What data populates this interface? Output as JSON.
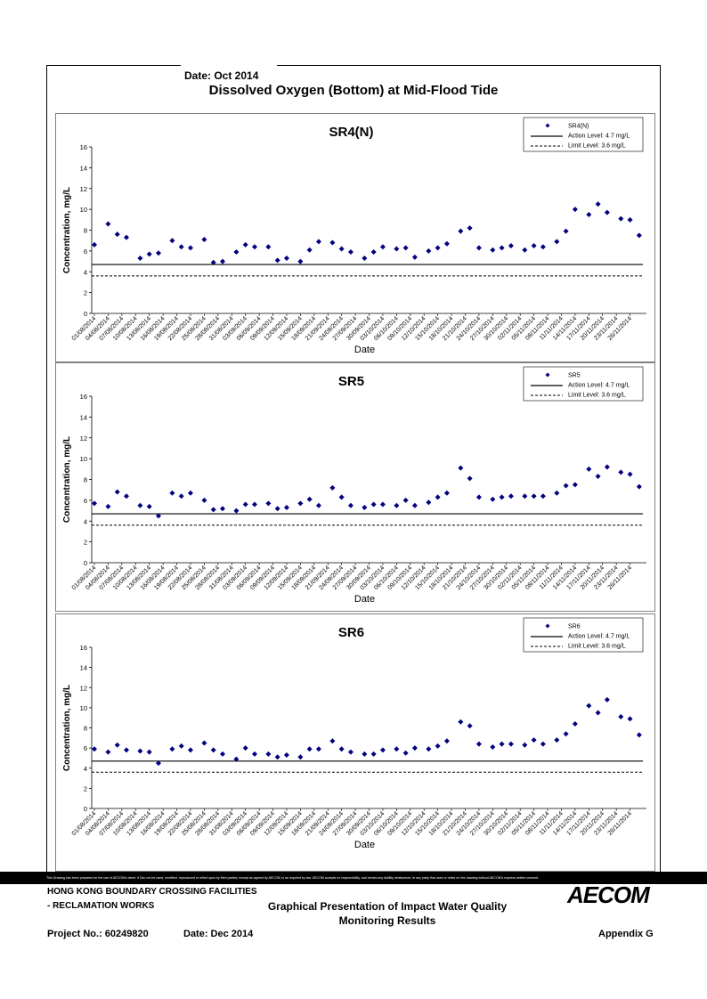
{
  "header": {
    "date": "Date: Oct 2014",
    "title": "Dissolved Oxygen (Bottom) at Mid-Flood Tide"
  },
  "chart_data": [
    {
      "type": "scatter",
      "title": "SR4(N)",
      "xlabel": "Date",
      "ylabel": "Concentration, mg/L",
      "ylim": [
        0,
        16
      ],
      "yticks": [
        0,
        2,
        4,
        6,
        8,
        10,
        12,
        14,
        16
      ],
      "x_tick_labels": [
        "01/08/2014",
        "04/08/2014",
        "07/08/2014",
        "10/08/2014",
        "13/08/2014",
        "16/08/2014",
        "19/08/2014",
        "22/08/2014",
        "25/08/2014",
        "28/08/2014",
        "31/08/2014",
        "03/09/2014",
        "06/09/2014",
        "09/09/2014",
        "12/09/2014",
        "15/09/2014",
        "18/09/2014",
        "21/09/2014",
        "24/09/2014",
        "27/09/2014",
        "30/09/2014",
        "03/10/2014",
        "06/10/2014",
        "09/10/2014",
        "12/10/2014",
        "15/10/2014",
        "18/10/2014",
        "21/10/2014",
        "24/10/2014",
        "27/10/2014",
        "30/10/2014",
        "02/11/2014",
        "05/11/2014",
        "08/11/2014",
        "11/11/2014",
        "14/11/2014",
        "17/11/2014",
        "20/11/2014",
        "23/11/2014",
        "26/11/2014"
      ],
      "legend": {
        "position": "top-right",
        "entries": [
          "SR4(N)",
          "Action Level: 4.7 mg/L",
          "Limit Level: 3.6 mg/L"
        ]
      },
      "action_level": 4.7,
      "limit_level": 3.6,
      "series": [
        {
          "name": "SR4(N)",
          "color": "#000080",
          "points": [
            [
              0,
              6.6
            ],
            [
              1.5,
              8.6
            ],
            [
              2.5,
              7.6
            ],
            [
              3.5,
              7.3
            ],
            [
              5,
              5.3
            ],
            [
              6,
              5.7
            ],
            [
              7,
              5.8
            ],
            [
              8.5,
              7.0
            ],
            [
              9.5,
              6.4
            ],
            [
              10.5,
              6.3
            ],
            [
              12,
              7.1
            ],
            [
              13,
              4.9
            ],
            [
              14,
              5.0
            ],
            [
              15.5,
              5.9
            ],
            [
              16.5,
              6.6
            ],
            [
              17.5,
              6.4
            ],
            [
              19,
              6.4
            ],
            [
              20,
              5.1
            ],
            [
              21,
              5.3
            ],
            [
              22.5,
              5.0
            ],
            [
              23.5,
              6.1
            ],
            [
              24.5,
              6.9
            ],
            [
              26,
              6.8
            ],
            [
              27,
              6.2
            ],
            [
              28,
              5.9
            ],
            [
              29.5,
              5.3
            ],
            [
              30.5,
              5.9
            ],
            [
              31.5,
              6.4
            ],
            [
              33,
              6.2
            ],
            [
              34,
              6.3
            ],
            [
              35,
              5.4
            ],
            [
              36.5,
              6.0
            ],
            [
              37.5,
              6.3
            ],
            [
              38.5,
              6.7
            ],
            [
              40,
              7.9
            ],
            [
              41,
              8.2
            ],
            [
              42,
              6.3
            ],
            [
              43.5,
              6.1
            ],
            [
              44.5,
              6.3
            ],
            [
              45.5,
              6.5
            ],
            [
              47,
              6.1
            ],
            [
              48,
              6.5
            ],
            [
              49,
              6.4
            ],
            [
              50.5,
              6.9
            ],
            [
              51.5,
              7.9
            ],
            [
              52.5,
              10.0
            ],
            [
              54,
              9.5
            ],
            [
              55,
              10.5
            ],
            [
              56,
              9.7
            ],
            [
              57.5,
              9.1
            ],
            [
              58.5,
              9.0
            ],
            [
              59.5,
              7.5
            ]
          ]
        }
      ]
    },
    {
      "type": "scatter",
      "title": "SR5",
      "xlabel": "Date",
      "ylabel": "Concentration, mg/L",
      "ylim": [
        0,
        16
      ],
      "yticks": [
        0,
        2,
        4,
        6,
        8,
        10,
        12,
        14,
        16
      ],
      "x_tick_labels": [
        "01/08/2014",
        "04/08/2014",
        "07/08/2014",
        "10/08/2014",
        "13/08/2014",
        "16/08/2014",
        "19/08/2014",
        "22/08/2014",
        "25/08/2014",
        "28/08/2014",
        "31/08/2014",
        "03/09/2014",
        "06/09/2014",
        "09/09/2014",
        "12/09/2014",
        "15/09/2014",
        "18/09/2014",
        "21/09/2014",
        "24/09/2014",
        "27/09/2014",
        "30/09/2014",
        "03/10/2014",
        "06/10/2014",
        "09/10/2014",
        "12/10/2014",
        "15/10/2014",
        "18/10/2014",
        "21/10/2014",
        "24/10/2014",
        "27/10/2014",
        "30/10/2014",
        "02/11/2014",
        "05/11/2014",
        "08/11/2014",
        "11/11/2014",
        "14/11/2014",
        "17/11/2014",
        "20/11/2014",
        "23/11/2014",
        "26/11/2014"
      ],
      "legend": {
        "position": "top-right",
        "entries": [
          "SR5",
          "Action Level: 4.7 mg/L",
          "Limit Level: 3.6 mg/L"
        ]
      },
      "action_level": 4.7,
      "limit_level": 3.6,
      "series": [
        {
          "name": "SR5",
          "color": "#000080",
          "points": [
            [
              0,
              5.7
            ],
            [
              1.5,
              5.4
            ],
            [
              2.5,
              6.8
            ],
            [
              3.5,
              6.4
            ],
            [
              5,
              5.5
            ],
            [
              6,
              5.4
            ],
            [
              7,
              4.5
            ],
            [
              8.5,
              6.7
            ],
            [
              9.5,
              6.4
            ],
            [
              10.5,
              6.7
            ],
            [
              12,
              6.0
            ],
            [
              13,
              5.1
            ],
            [
              14,
              5.2
            ],
            [
              15.5,
              5.0
            ],
            [
              16.5,
              5.6
            ],
            [
              17.5,
              5.6
            ],
            [
              19,
              5.7
            ],
            [
              20,
              5.2
            ],
            [
              21,
              5.3
            ],
            [
              22.5,
              5.7
            ],
            [
              23.5,
              6.1
            ],
            [
              24.5,
              5.5
            ],
            [
              26,
              7.2
            ],
            [
              27,
              6.3
            ],
            [
              28,
              5.5
            ],
            [
              29.5,
              5.3
            ],
            [
              30.5,
              5.6
            ],
            [
              31.5,
              5.6
            ],
            [
              33,
              5.5
            ],
            [
              34,
              6.0
            ],
            [
              35,
              5.5
            ],
            [
              36.5,
              5.8
            ],
            [
              37.5,
              6.3
            ],
            [
              38.5,
              6.7
            ],
            [
              40,
              9.1
            ],
            [
              41,
              8.1
            ],
            [
              42,
              6.3
            ],
            [
              43.5,
              6.1
            ],
            [
              44.5,
              6.3
            ],
            [
              45.5,
              6.4
            ],
            [
              47,
              6.4
            ],
            [
              48,
              6.4
            ],
            [
              49,
              6.4
            ],
            [
              50.5,
              6.7
            ],
            [
              51.5,
              7.4
            ],
            [
              52.5,
              7.5
            ],
            [
              54,
              9.0
            ],
            [
              55,
              8.3
            ],
            [
              56,
              9.2
            ],
            [
              57.5,
              8.7
            ],
            [
              58.5,
              8.5
            ],
            [
              59.5,
              7.3
            ]
          ]
        }
      ]
    },
    {
      "type": "scatter",
      "title": "SR6",
      "xlabel": "Date",
      "ylabel": "Concentration, mg/L",
      "ylim": [
        0,
        16
      ],
      "yticks": [
        0,
        2,
        4,
        6,
        8,
        10,
        12,
        14,
        16
      ],
      "x_tick_labels": [
        "01/08/2014",
        "04/08/2014",
        "07/08/2014",
        "10/08/2014",
        "13/08/2014",
        "16/08/2014",
        "19/08/2014",
        "22/08/2014",
        "25/08/2014",
        "28/08/2014",
        "31/08/2014",
        "03/09/2014",
        "06/09/2014",
        "09/09/2014",
        "12/09/2014",
        "15/09/2014",
        "18/09/2014",
        "21/09/2014",
        "24/09/2014",
        "27/09/2014",
        "30/09/2014",
        "03/10/2014",
        "06/10/2014",
        "09/10/2014",
        "12/10/2014",
        "15/10/2014",
        "18/10/2014",
        "21/10/2014",
        "24/10/2014",
        "27/10/2014",
        "30/10/2014",
        "02/11/2014",
        "05/11/2014",
        "08/11/2014",
        "11/11/2014",
        "14/11/2014",
        "17/11/2014",
        "20/11/2014",
        "23/11/2014",
        "26/11/2014"
      ],
      "legend": {
        "position": "top-right",
        "entries": [
          "SR6",
          "Action Level: 4.7 mg/L",
          "Limit Level: 3.6 mg/L"
        ]
      },
      "action_level": 4.7,
      "limit_level": 3.6,
      "series": [
        {
          "name": "SR6",
          "color": "#000080",
          "points": [
            [
              0,
              5.9
            ],
            [
              1.5,
              5.6
            ],
            [
              2.5,
              6.3
            ],
            [
              3.5,
              5.8
            ],
            [
              5,
              5.7
            ],
            [
              6,
              5.6
            ],
            [
              7,
              4.5
            ],
            [
              8.5,
              5.9
            ],
            [
              9.5,
              6.2
            ],
            [
              10.5,
              5.8
            ],
            [
              12,
              6.5
            ],
            [
              13,
              5.8
            ],
            [
              14,
              5.4
            ],
            [
              15.5,
              4.9
            ],
            [
              16.5,
              6.0
            ],
            [
              17.5,
              5.4
            ],
            [
              19,
              5.4
            ],
            [
              20,
              5.1
            ],
            [
              21,
              5.3
            ],
            [
              22.5,
              5.1
            ],
            [
              23.5,
              5.9
            ],
            [
              24.5,
              5.9
            ],
            [
              26,
              6.7
            ],
            [
              27,
              5.9
            ],
            [
              28,
              5.6
            ],
            [
              29.5,
              5.4
            ],
            [
              30.5,
              5.4
            ],
            [
              31.5,
              5.8
            ],
            [
              33,
              5.9
            ],
            [
              34,
              5.5
            ],
            [
              35,
              6.0
            ],
            [
              36.5,
              5.9
            ],
            [
              37.5,
              6.2
            ],
            [
              38.5,
              6.7
            ],
            [
              40,
              8.6
            ],
            [
              41,
              8.2
            ],
            [
              42,
              6.4
            ],
            [
              43.5,
              6.1
            ],
            [
              44.5,
              6.4
            ],
            [
              45.5,
              6.4
            ],
            [
              47,
              6.3
            ],
            [
              48,
              6.8
            ],
            [
              49,
              6.4
            ],
            [
              50.5,
              6.8
            ],
            [
              51.5,
              7.4
            ],
            [
              52.5,
              8.4
            ],
            [
              54,
              10.2
            ],
            [
              55,
              9.5
            ],
            [
              56,
              10.8
            ],
            [
              57.5,
              9.1
            ],
            [
              58.5,
              8.9
            ],
            [
              59.5,
              7.3
            ]
          ]
        }
      ]
    }
  ],
  "disclaimer": "This Drawing has been prepared for the use of AECOM's client. It Dec not be used, modified, reproduced or relied upon by third parties, except as agreed by AECOM or as required by law. AECOM accepts no responsibility, and denies any liability whatsoever, to any party that uses or relies on this drawing without AECOM's express written consent.",
  "footer": {
    "client_line1": "HONG KONG BOUNDARY CROSSING FACILITIES",
    "client_line2": "- RECLAMATION WORKS",
    "title_line1": "Graphical Presentation of Impact Water Quality",
    "title_line2": "Monitoring Results",
    "project_no": "Project No.: 60249820",
    "date": "Date: Dec 2014",
    "appendix": "Appendix G",
    "logo": "AECOM"
  }
}
